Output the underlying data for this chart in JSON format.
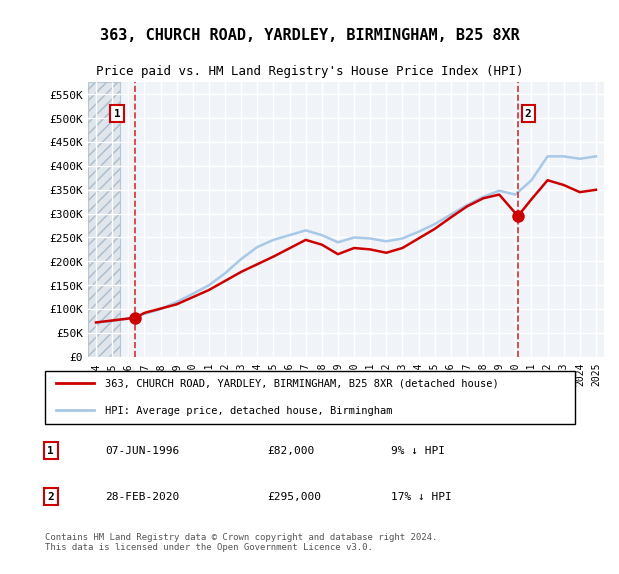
{
  "title": "363, CHURCH ROAD, YARDLEY, BIRMINGHAM, B25 8XR",
  "subtitle": "Price paid vs. HM Land Registry's House Price Index (HPI)",
  "legend_line1": "363, CHURCH ROAD, YARDLEY, BIRMINGHAM, B25 8XR (detached house)",
  "legend_line2": "HPI: Average price, detached house, Birmingham",
  "annotation1_label": "1",
  "annotation1_date": "07-JUN-1996",
  "annotation1_price": "£82,000",
  "annotation1_hpi": "9% ↓ HPI",
  "annotation2_label": "2",
  "annotation2_date": "28-FEB-2020",
  "annotation2_price": "£295,000",
  "annotation2_hpi": "17% ↓ HPI",
  "copyright": "Contains HM Land Registry data © Crown copyright and database right 2024.\nThis data is licensed under the Open Government Licence v3.0.",
  "sale1_year": 1996.44,
  "sale1_price": 82000,
  "sale2_year": 2020.16,
  "sale2_price": 295000,
  "hpi_color": "#a8c8e8",
  "price_color": "#cc0000",
  "dashed_color": "#cc0000",
  "background_color": "#f0f4f8",
  "grid_color": "#ffffff",
  "ylim_min": 0,
  "ylim_max": 575000,
  "xlim_min": 1993.5,
  "xlim_max": 2025.5,
  "yticks": [
    0,
    50000,
    100000,
    150000,
    200000,
    250000,
    300000,
    350000,
    400000,
    450000,
    500000,
    550000
  ],
  "xticks": [
    1994,
    1995,
    1996,
    1997,
    1998,
    1999,
    2000,
    2001,
    2002,
    2003,
    2004,
    2005,
    2006,
    2007,
    2008,
    2009,
    2010,
    2011,
    2012,
    2013,
    2014,
    2015,
    2016,
    2017,
    2018,
    2019,
    2020,
    2021,
    2022,
    2023,
    2024,
    2025
  ],
  "hpi_years": [
    1994,
    1995,
    1996,
    1997,
    1998,
    1999,
    2000,
    2001,
    2002,
    2003,
    2004,
    2005,
    2006,
    2007,
    2008,
    2009,
    2010,
    2011,
    2012,
    2013,
    2014,
    2015,
    2016,
    2017,
    2018,
    2019,
    2020,
    2021,
    2022,
    2023,
    2024,
    2025
  ],
  "hpi_values": [
    72000,
    75000,
    80000,
    90000,
    100000,
    115000,
    132000,
    150000,
    175000,
    205000,
    230000,
    245000,
    255000,
    265000,
    255000,
    240000,
    250000,
    248000,
    242000,
    248000,
    262000,
    278000,
    298000,
    318000,
    335000,
    348000,
    340000,
    370000,
    420000,
    420000,
    415000,
    420000
  ],
  "price_years": [
    1994,
    1996.44,
    1997,
    1999,
    2001,
    2003,
    2005,
    2007,
    2008,
    2009,
    2010,
    2011,
    2012,
    2013,
    2014,
    2015,
    2016,
    2017,
    2018,
    2019,
    2020.16,
    2021,
    2022,
    2023,
    2024,
    2025
  ],
  "price_values": [
    72000,
    82000,
    92000,
    110000,
    140000,
    178000,
    210000,
    245000,
    235000,
    215000,
    228000,
    225000,
    218000,
    228000,
    248000,
    268000,
    292000,
    315000,
    332000,
    340000,
    295000,
    330000,
    370000,
    360000,
    345000,
    350000
  ]
}
